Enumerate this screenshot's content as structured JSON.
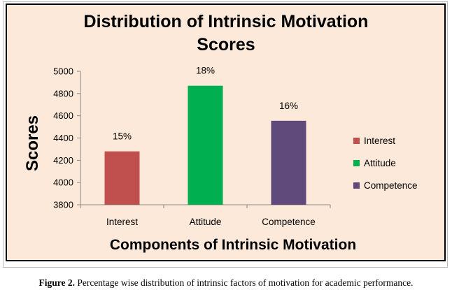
{
  "chart_data": {
    "type": "bar",
    "title_line1": "Distribution  of Intrinsic  Motivation",
    "title_line2": "Scores",
    "xlabel": "Components  of Intrinsic Motivation",
    "ylabel": "Scores",
    "categories": [
      "Interest",
      "Attitude",
      "Competence"
    ],
    "values": [
      4280,
      4870,
      4555
    ],
    "data_labels": [
      "15%",
      "18%",
      "16%"
    ],
    "colors": [
      "#c0504d",
      "#00b050",
      "#604a7b"
    ],
    "ylim": [
      3800,
      5000
    ],
    "yticks": [
      3800,
      4000,
      4200,
      4400,
      4600,
      4800,
      5000
    ],
    "grid": false,
    "legend_position": "right",
    "legend": [
      {
        "name": "Interest",
        "color": "#c0504d"
      },
      {
        "name": "Attitude",
        "color": "#00b050"
      },
      {
        "name": "Competence",
        "color": "#604a7b"
      }
    ]
  },
  "caption": {
    "label": "Figure 2.",
    "text": " Percentage wise distribution of intrinsic factors of motivation for academic performance."
  }
}
